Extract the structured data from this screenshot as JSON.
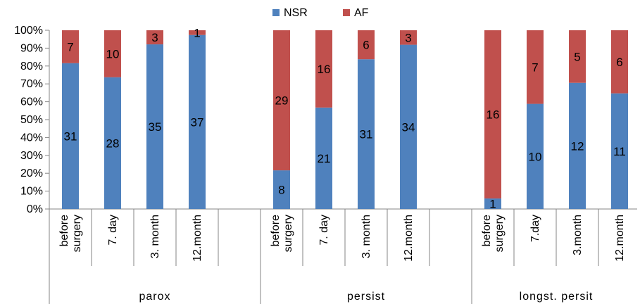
{
  "chart_data": {
    "type": "bar",
    "stacked": "percent",
    "colors": {
      "NSR": "#4F81BD",
      "AF": "#C0504D"
    },
    "legend": {
      "position": "top",
      "entries": [
        "NSR",
        "AF"
      ]
    },
    "y_ticks": [
      "0%",
      "10%",
      "20%",
      "30%",
      "40%",
      "50%",
      "60%",
      "70%",
      "80%",
      "90%",
      "100%"
    ],
    "ylim": [
      0,
      100
    ],
    "groups": [
      {
        "label": "parox",
        "categories": [
          {
            "label": [
              "before",
              "surgery"
            ],
            "nsr": 31,
            "af": 7
          },
          {
            "label": [
              "7. day"
            ],
            "nsr": 28,
            "af": 10
          },
          {
            "label": [
              "3. month"
            ],
            "nsr": 35,
            "af": 3
          },
          {
            "label": [
              "12.month"
            ],
            "nsr": 37,
            "af": 1
          },
          {
            "label": [],
            "nsr": null,
            "af": null
          }
        ]
      },
      {
        "label": "persist",
        "categories": [
          {
            "label": [
              "before",
              "surgery"
            ],
            "nsr": 8,
            "af": 29
          },
          {
            "label": [
              "7. day"
            ],
            "nsr": 21,
            "af": 16
          },
          {
            "label": [
              "3. month"
            ],
            "nsr": 31,
            "af": 6
          },
          {
            "label": [
              "12.month"
            ],
            "nsr": 34,
            "af": 3
          },
          {
            "label": [],
            "nsr": null,
            "af": null
          }
        ]
      },
      {
        "label": "longst. persit",
        "categories": [
          {
            "label": [
              "before",
              "surgery"
            ],
            "nsr": 1,
            "af": 16
          },
          {
            "label": [
              "7.day"
            ],
            "nsr": 10,
            "af": 7
          },
          {
            "label": [
              "3.month"
            ],
            "nsr": 12,
            "af": 5
          },
          {
            "label": [
              "12.month"
            ],
            "nsr": 11,
            "af": 6
          }
        ]
      }
    ]
  }
}
